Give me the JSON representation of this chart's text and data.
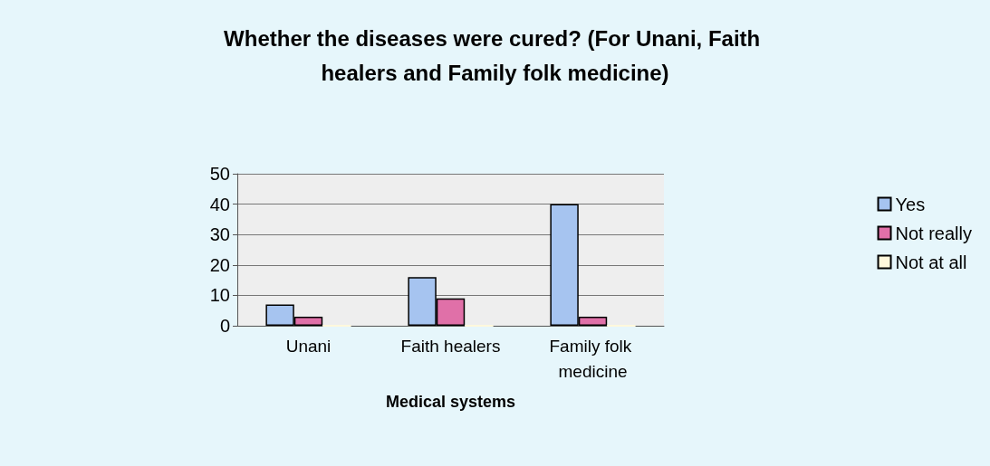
{
  "chart_data": {
    "type": "bar",
    "title": "Whether the diseases were cured? (For Unani, Faith healers and Family folk medicine)",
    "xlabel": "Medical systems",
    "categories": [
      "Unani",
      "Faith healers",
      "Family folk medicine"
    ],
    "series": [
      {
        "name": "Yes",
        "color": "#a6c4f0",
        "values": [
          7,
          16,
          40
        ]
      },
      {
        "name": "Not really",
        "color": "#e070a8",
        "values": [
          3,
          9,
          3
        ]
      },
      {
        "name": "Not at all",
        "color": "#fff8dc",
        "values": [
          0,
          0,
          0
        ]
      }
    ],
    "ylim": [
      0,
      50
    ],
    "yticks": [
      0,
      10,
      20,
      30,
      40,
      50
    ],
    "grid": "y",
    "legend": "right"
  }
}
